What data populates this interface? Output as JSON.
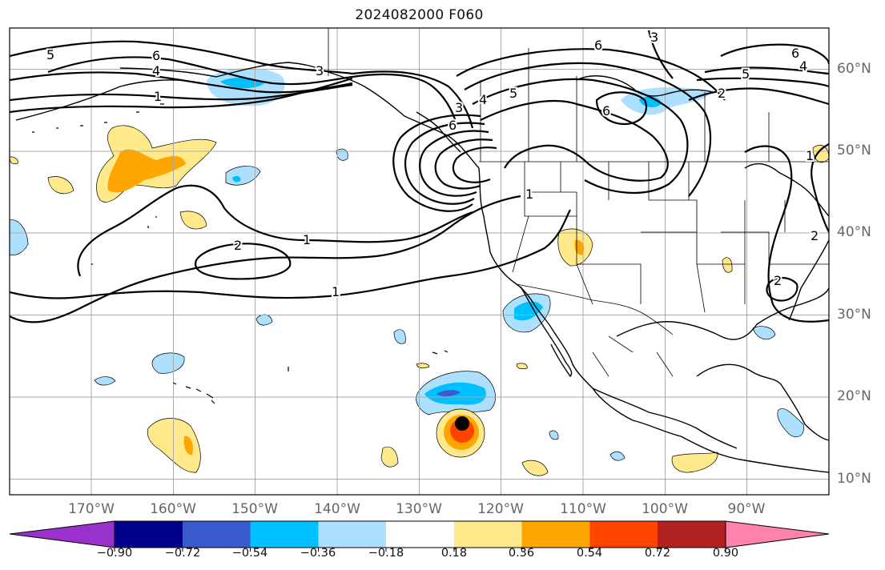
{
  "title": "2024082000 F060",
  "lat_ticks": [
    {
      "label": "60°N",
      "lat": 60
    },
    {
      "label": "50°N",
      "lat": 50
    },
    {
      "label": "40°N",
      "lat": 40
    },
    {
      "label": "30°N",
      "lat": 30
    },
    {
      "label": "20°N",
      "lat": 20
    },
    {
      "label": "10°N",
      "lat": 10
    }
  ],
  "lon_ticks": [
    {
      "label": "170°W",
      "lon": -170
    },
    {
      "label": "160°W",
      "lon": -160
    },
    {
      "label": "150°W",
      "lon": -150
    },
    {
      "label": "140°W",
      "lon": -140
    },
    {
      "label": "130°W",
      "lon": -130
    },
    {
      "label": "120°W",
      "lon": -120
    },
    {
      "label": "110°W",
      "lon": -110
    },
    {
      "label": "100°W",
      "lon": -100
    },
    {
      "label": "90°W",
      "lon": -90
    }
  ],
  "colorbar": {
    "colors": [
      "#9932CC",
      "#00008B",
      "#3A5BCD",
      "#00BFFF",
      "#ADDFFF",
      "#FFFFFF",
      "#FFE98A",
      "#FFA500",
      "#FF4500",
      "#B22222",
      "#FF82AB"
    ],
    "labels": [
      "−0.90",
      "−0.72",
      "−0.54",
      "−0.36",
      "−0.18",
      "0.18",
      "0.36",
      "0.54",
      "0.72",
      "0.90"
    ]
  },
  "contour_labels": [
    "5",
    "6",
    "4",
    "1",
    "3",
    "6",
    "3",
    "4",
    "5",
    "6",
    "1",
    "2",
    "1",
    "1",
    "6",
    "2",
    "6",
    "5",
    "4",
    "3",
    "1",
    "2",
    "2"
  ],
  "storm_marker": {
    "lat": 16.8,
    "lon": -125.2
  }
}
